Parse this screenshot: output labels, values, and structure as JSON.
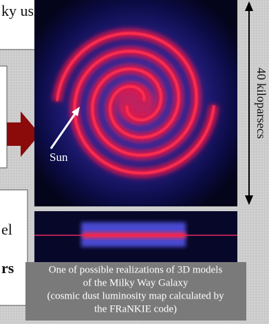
{
  "text_boxes": [
    {
      "text": "ky using a"
    },
    {
      "lines": [
        "el",
        "rs"
      ]
    }
  ],
  "galaxy_image": {
    "sun_label": "Sun",
    "scale_label": "40 kiloparsecs"
  },
  "caption": {
    "lines": [
      "One of possible realizations of 3D models",
      "of the Milky Way Galaxy",
      "(cosmic dust luminosity map calculated by",
      "the FRaNKIE code)"
    ]
  }
}
